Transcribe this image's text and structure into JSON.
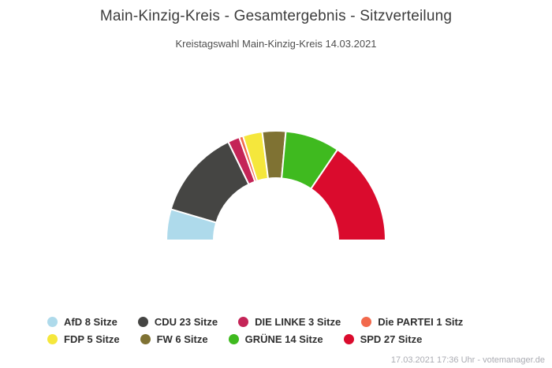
{
  "header": {
    "title": "Main-Kinzig-Kreis - Gesamtergebnis - Sitzverteilung",
    "subtitle": "Kreistagswahl Main-Kinzig-Kreis 14.03.2021"
  },
  "footer": {
    "credit": "17.03.2021 17:36 Uhr - votemanager.de"
  },
  "chart_data": {
    "type": "pie",
    "variant": "half-donut",
    "title": "Main-Kinzig-Kreis - Gesamtergebnis - Sitzverteilung",
    "subtitle": "Kreistagswahl Main-Kinzig-Kreis 14.03.2021",
    "unit": "Sitze",
    "total_seats": 87,
    "start_angle_deg": -90,
    "end_angle_deg": 90,
    "inner_radius_ratio": 0.57,
    "gap_color": "#ffffff",
    "legend_position": "bottom-left",
    "series": [
      {
        "name": "AfD",
        "seats": 8,
        "legend_label": "AfD 8 Sitze",
        "color": "#AEDAEB"
      },
      {
        "name": "CDU",
        "seats": 23,
        "legend_label": "CDU 23 Sitze",
        "color": "#454543"
      },
      {
        "name": "DIE LINKE",
        "seats": 3,
        "legend_label": "DIE LINKE 3 Sitze",
        "color": "#C42457"
      },
      {
        "name": "Die PARTEI",
        "seats": 1,
        "legend_label": "Die PARTEI 1 Sitz",
        "color": "#F2694C"
      },
      {
        "name": "FDP",
        "seats": 5,
        "legend_label": "FDP 5 Sitze",
        "color": "#F5E73C"
      },
      {
        "name": "FW",
        "seats": 6,
        "legend_label": "FW 6 Sitze",
        "color": "#7F7233"
      },
      {
        "name": "GRÜNE",
        "seats": 14,
        "legend_label": "GRÜNE 14 Sitze",
        "color": "#3FBA1F"
      },
      {
        "name": "SPD",
        "seats": 27,
        "legend_label": "SPD 27 Sitze",
        "color": "#DA0B2D"
      }
    ],
    "legend_rows": [
      [
        0,
        1,
        2,
        3
      ],
      [
        4,
        5,
        6,
        7
      ]
    ]
  }
}
